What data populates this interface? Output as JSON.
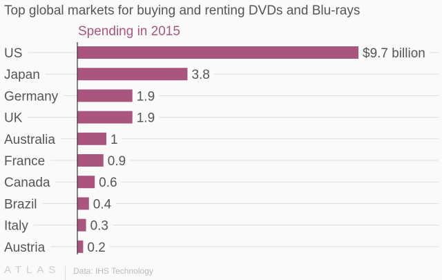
{
  "chart_data": {
    "type": "bar",
    "orientation": "horizontal",
    "title": "Top global markets for buying and renting DVDs and Blu-rays",
    "subtitle": "Spending in 2015",
    "categories": [
      "US",
      "Japan",
      "Germany",
      "UK",
      "Australia",
      "France",
      "Canada",
      "Brazil",
      "Italy",
      "Austria"
    ],
    "values": [
      9.7,
      3.8,
      1.9,
      1.9,
      1,
      0.9,
      0.6,
      0.4,
      0.3,
      0.2
    ],
    "data_labels": [
      "$9.7 billion",
      "3.8",
      "1.9",
      "1.9",
      "1",
      "0.9",
      "0.6",
      "0.4",
      "0.3",
      "0.2"
    ],
    "unit": "billion USD",
    "xlim": [
      0,
      9.7
    ],
    "grid": true,
    "bar_color": "#a9557f"
  },
  "footer": {
    "logo": "ATLAS",
    "source": "Data: IHS Technology"
  }
}
